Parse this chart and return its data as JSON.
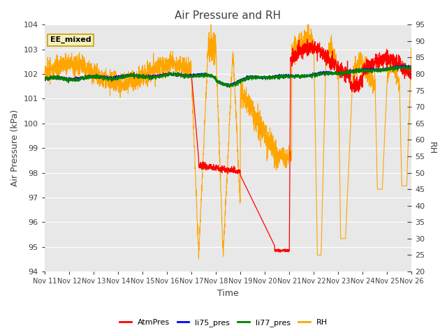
{
  "title": "Air Pressure and RH",
  "ylabel_left": "Air Pressure (kPa)",
  "ylabel_right": "RH",
  "xlabel": "Time",
  "ylim_left": [
    94.0,
    104.0
  ],
  "ylim_right": [
    20,
    95
  ],
  "yticks_left": [
    94.0,
    95.0,
    96.0,
    97.0,
    98.0,
    99.0,
    100.0,
    101.0,
    102.0,
    103.0,
    104.0
  ],
  "yticks_right": [
    20,
    25,
    30,
    35,
    40,
    45,
    50,
    55,
    60,
    65,
    70,
    75,
    80,
    85,
    90,
    95
  ],
  "xtick_labels": [
    "Nov 11",
    "Nov 12",
    "Nov 13",
    "Nov 14",
    "Nov 15",
    "Nov 16",
    "Nov 17",
    "Nov 18",
    "Nov 19",
    "Nov 20",
    "Nov 21",
    "Nov 22",
    "Nov 23",
    "Nov 24",
    "Nov 25",
    "Nov 26"
  ],
  "annotation_box": "EE_mixed",
  "bg_color": "#e8e8e8",
  "legend_entries": [
    "AtmPres",
    "li75_pres",
    "li77_pres",
    "RH"
  ],
  "legend_colors": [
    "red",
    "blue",
    "green",
    "orange"
  ],
  "title_color": "#404040",
  "axis_label_color": "#404040",
  "tick_color": "#404040",
  "figsize": [
    6.4,
    4.8
  ],
  "dpi": 100
}
